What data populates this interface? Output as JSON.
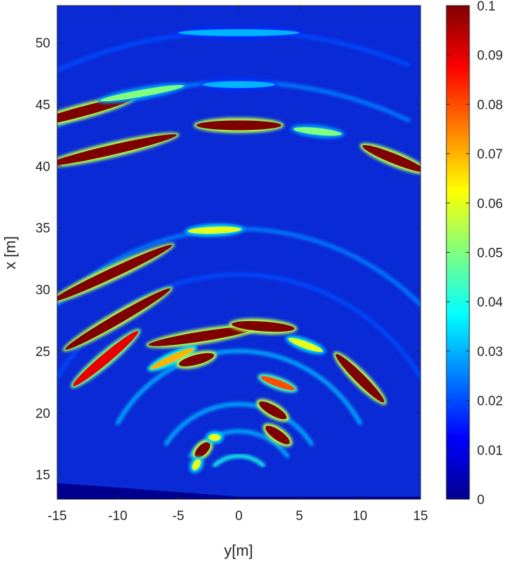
{
  "chart_data": {
    "type": "heatmap",
    "title": "",
    "xlabel": "y[m]",
    "ylabel": "x [m]",
    "xlim": [
      -15,
      15
    ],
    "ylim": [
      13,
      53
    ],
    "xticks": [
      "-15",
      "-10",
      "-5",
      "0",
      "5",
      "10",
      "15"
    ],
    "yticks": [
      "15",
      "20",
      "25",
      "30",
      "35",
      "40",
      "45",
      "50"
    ],
    "colormap": "jet",
    "clim": [
      0,
      0.1
    ],
    "colorbar_ticks": [
      "0",
      "0.01",
      "0.02",
      "0.03",
      "0.04",
      "0.05",
      "0.06",
      "0.07",
      "0.08",
      "0.09",
      "0.1"
    ],
    "sensor_origin": [
      0,
      13.5
    ],
    "arcs": [
      {
        "range": 37.4,
        "y_from": -15,
        "y_to": 14,
        "value": 0.02
      },
      {
        "range": 33.3,
        "y_from": -15,
        "y_to": 14,
        "value": 0.025
      },
      {
        "range": 3.0,
        "y_from": -2,
        "y_to": 2,
        "value": 0.04
      },
      {
        "range": 5.0,
        "y_from": -4,
        "y_to": 4,
        "value": 0.03
      },
      {
        "range": 7.2,
        "y_from": -6,
        "y_to": 6,
        "value": 0.03
      },
      {
        "range": 11.5,
        "y_from": -10,
        "y_to": 10,
        "value": 0.03
      },
      {
        "range": 17.7,
        "y_from": -15,
        "y_to": 15,
        "value": 0.02
      },
      {
        "range": 21.4,
        "y_from": -15,
        "y_to": 15,
        "value": 0.025
      }
    ],
    "hotspots": [
      {
        "y": -13,
        "x": 44.4,
        "dy": 4.5,
        "angle": 15,
        "value": 0.1
      },
      {
        "y": -8,
        "x": 45.9,
        "dy": 3.5,
        "angle": 10,
        "value": 0.05
      },
      {
        "y": -10.5,
        "x": 41.3,
        "dy": 5.5,
        "angle": 13,
        "value": 0.1
      },
      {
        "y": 0,
        "x": 43.3,
        "dy": 3.5,
        "angle": 0,
        "value": 0.1
      },
      {
        "y": 6.5,
        "x": 42.8,
        "dy": 2.0,
        "angle": -6,
        "value": 0.05
      },
      {
        "y": 12.8,
        "x": 40.6,
        "dy": 2.8,
        "angle": -22,
        "value": 0.1
      },
      {
        "y": 0,
        "x": 50.8,
        "dy": 5.0,
        "angle": 0,
        "value": 0.03
      },
      {
        "y": 0,
        "x": 46.6,
        "dy": 3.0,
        "angle": 0,
        "value": 0.03
      },
      {
        "y": -2,
        "x": 34.8,
        "dy": 2.2,
        "angle": 2,
        "value": 0.06
      },
      {
        "y": -10.5,
        "x": 31.3,
        "dy": 5.5,
        "angle": 25,
        "value": 0.1
      },
      {
        "y": -10,
        "x": 27.6,
        "dy": 5.0,
        "angle": 30,
        "value": 0.1
      },
      {
        "y": -11,
        "x": 24.4,
        "dy": 3.5,
        "angle": 40,
        "value": 0.09
      },
      {
        "y": -3,
        "x": 26.2,
        "dy": 4.5,
        "angle": 9,
        "value": 0.1
      },
      {
        "y": 2,
        "x": 27.0,
        "dy": 2.6,
        "angle": -4,
        "value": 0.1
      },
      {
        "y": -5.5,
        "x": 24.4,
        "dy": 2.0,
        "angle": 25,
        "value": 0.07
      },
      {
        "y": -3.5,
        "x": 24.3,
        "dy": 1.5,
        "angle": 15,
        "value": 0.1
      },
      {
        "y": 3.2,
        "x": 22.4,
        "dy": 1.5,
        "angle": -20,
        "value": 0.08
      },
      {
        "y": 5.5,
        "x": 25.5,
        "dy": 1.5,
        "angle": -20,
        "value": 0.06
      },
      {
        "y": 10.0,
        "x": 22.8,
        "dy": 2.8,
        "angle": -45,
        "value": 0.1
      },
      {
        "y": 2.8,
        "x": 20.2,
        "dy": 1.3,
        "angle": -30,
        "value": 0.1
      },
      {
        "y": 3.2,
        "x": 18.2,
        "dy": 1.2,
        "angle": -35,
        "value": 0.1
      },
      {
        "y": -3.0,
        "x": 17.0,
        "dy": 0.8,
        "angle": 45,
        "value": 0.1
      },
      {
        "y": -2.0,
        "x": 18.0,
        "dy": 0.5,
        "angle": 0,
        "value": 0.06
      },
      {
        "y": -3.5,
        "x": 15.8,
        "dy": 0.5,
        "angle": 60,
        "value": 0.06
      }
    ]
  }
}
